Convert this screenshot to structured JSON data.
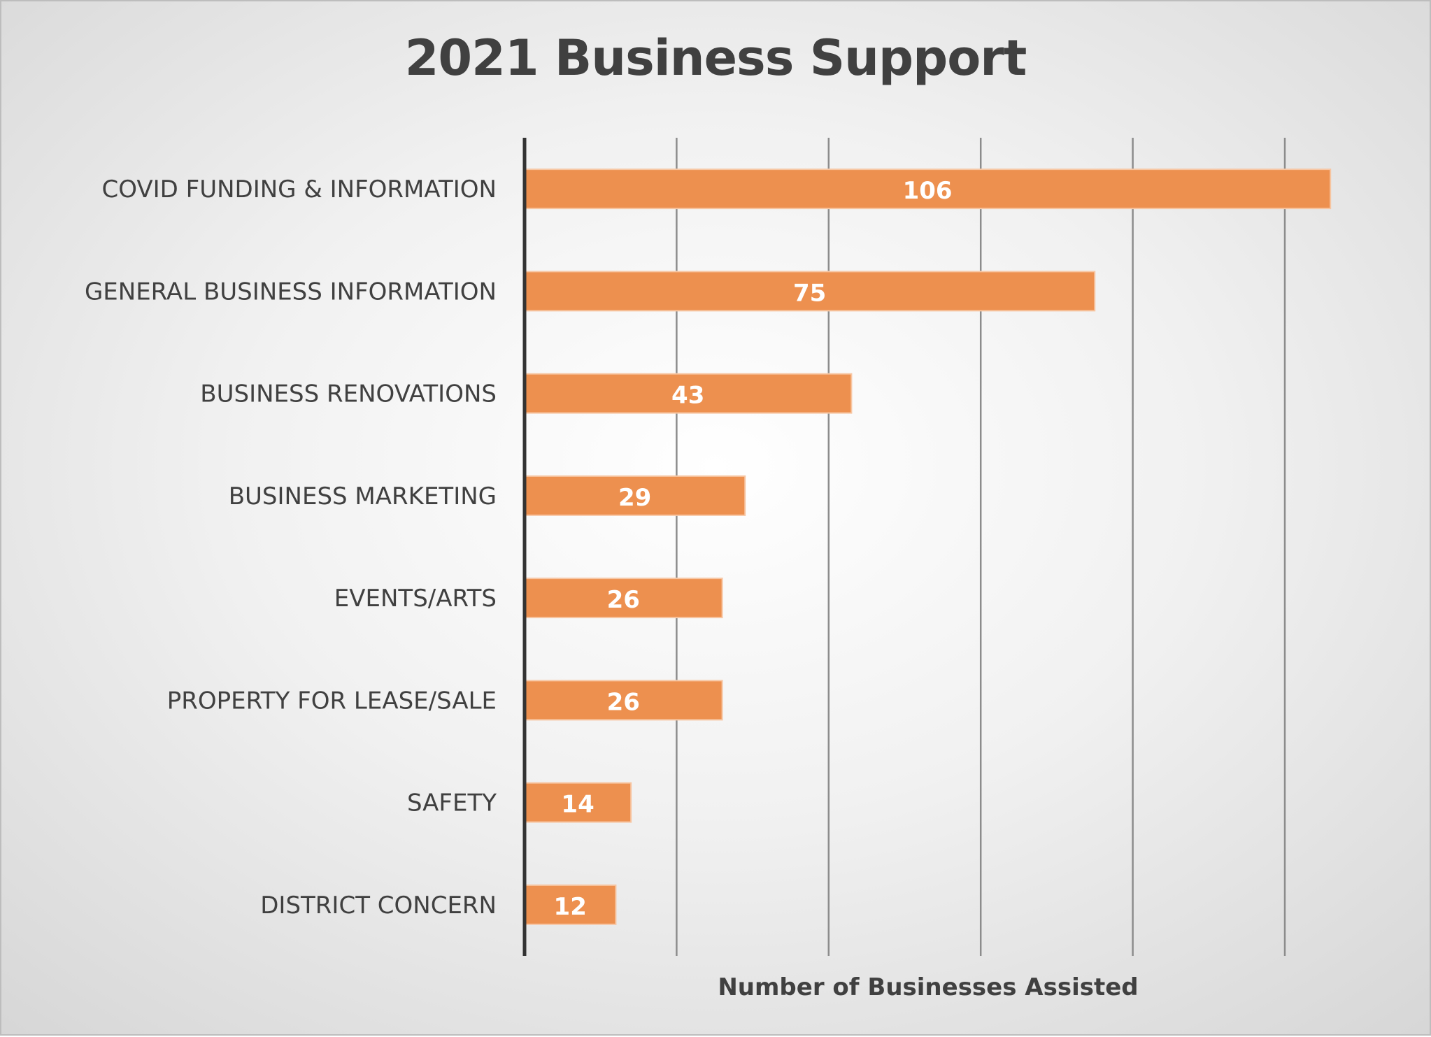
{
  "chart_data": {
    "type": "bar",
    "orientation": "horizontal",
    "title": "2021 Business Support",
    "xlabel": "Number of Businesses Assisted",
    "ylabel": "",
    "categories": [
      "COVID FUNDING & INFORMATION",
      "GENERAL BUSINESS INFORMATION",
      "BUSINESS RENOVATIONS",
      "BUSINESS MARKETING",
      "EVENTS/ARTS",
      "PROPERTY FOR LEASE/SALE",
      "SAFETY",
      "DISTRICT CONCERN"
    ],
    "values": [
      106,
      75,
      43,
      29,
      26,
      26,
      14,
      12
    ],
    "xlim": [
      0,
      110
    ],
    "x_gridlines": [
      20,
      40,
      60,
      80,
      100
    ],
    "grid": true,
    "legend": "none",
    "data_labels": true,
    "colors": {
      "bar": "#ED904F",
      "bar_edge": "#F7C6A3",
      "axis": "#333333",
      "grid": "#8C8C8C",
      "text": "#404040",
      "data_label": "#FFFFFF"
    }
  }
}
